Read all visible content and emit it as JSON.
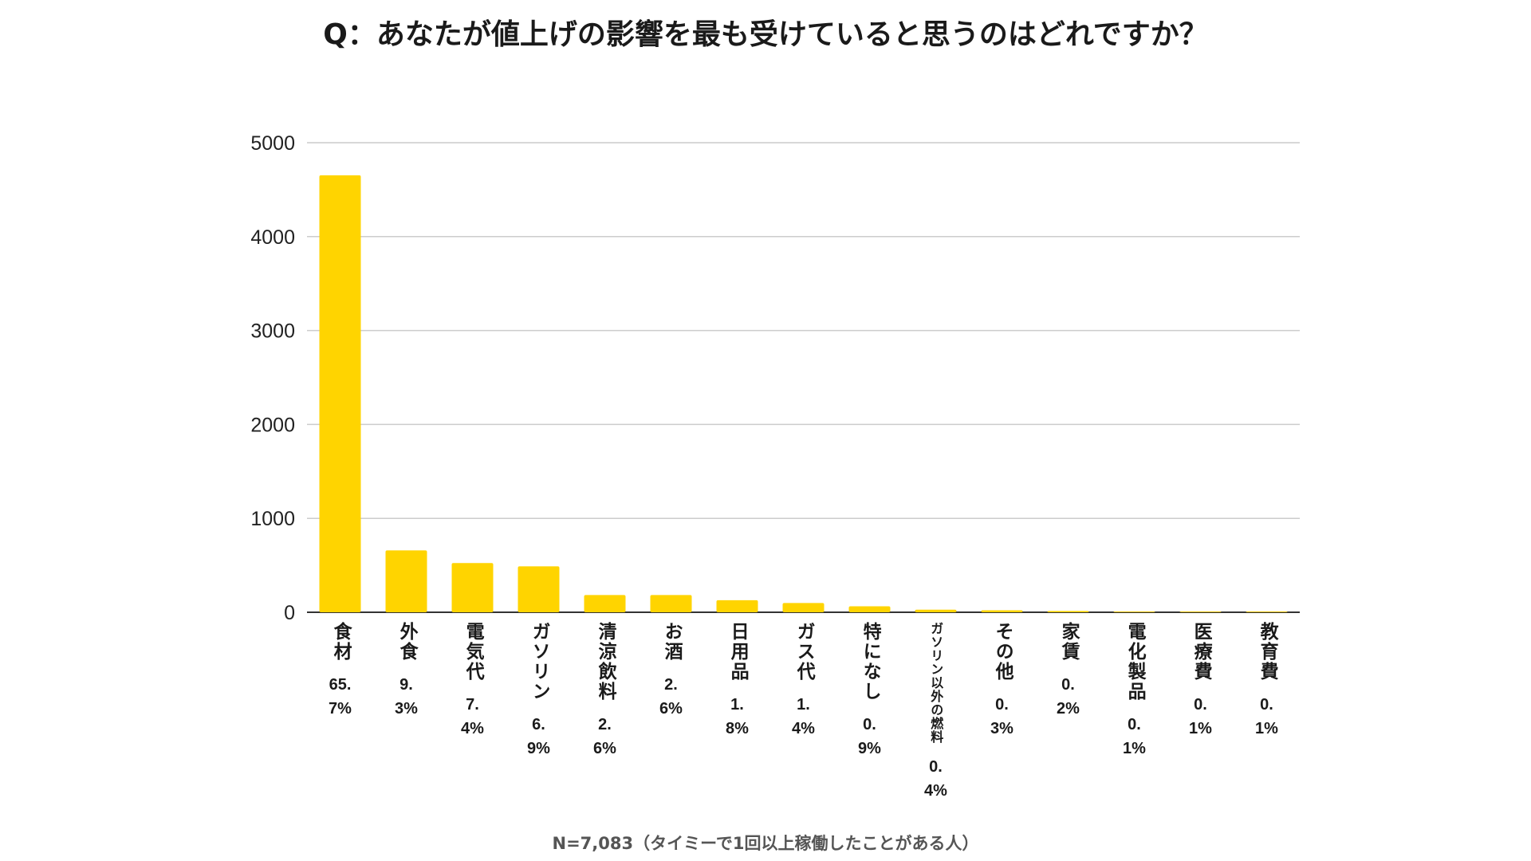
{
  "chart_data": {
    "type": "bar",
    "title": "Q：あなたが値上げの影響を最も受けていると思うのはどれですか？",
    "categories": [
      "食材",
      "外食",
      "電気代",
      "ガソリン",
      "清涼飲料",
      "お酒",
      "日用品",
      "ガス代",
      "特になし",
      "ガソリン以外の燃料",
      "その他",
      "家賃",
      "電化製品",
      "医療費",
      "教育費"
    ],
    "percent_labels": [
      "65.7%",
      "9.3%",
      "7.4%",
      "6.9%",
      "2.6%",
      "2.6%",
      "1.8%",
      "1.4%",
      "0.9%",
      "0.4%",
      "0.3%",
      "0.2%",
      "0.1%",
      "0.1%",
      "0.1%"
    ],
    "values": [
      4653,
      659,
      524,
      489,
      184,
      184,
      128,
      99,
      64,
      28,
      21,
      14,
      7,
      7,
      7
    ],
    "yticks": [
      "0",
      "1000",
      "2000",
      "3000",
      "4000",
      "5000"
    ],
    "ylim": [
      0,
      5000
    ],
    "xlabel": "",
    "ylabel": "",
    "grid": true,
    "bar_color": "#FFD400",
    "footnote": "N=7,083（タイミーで1回以上稼働したことがある人）"
  }
}
